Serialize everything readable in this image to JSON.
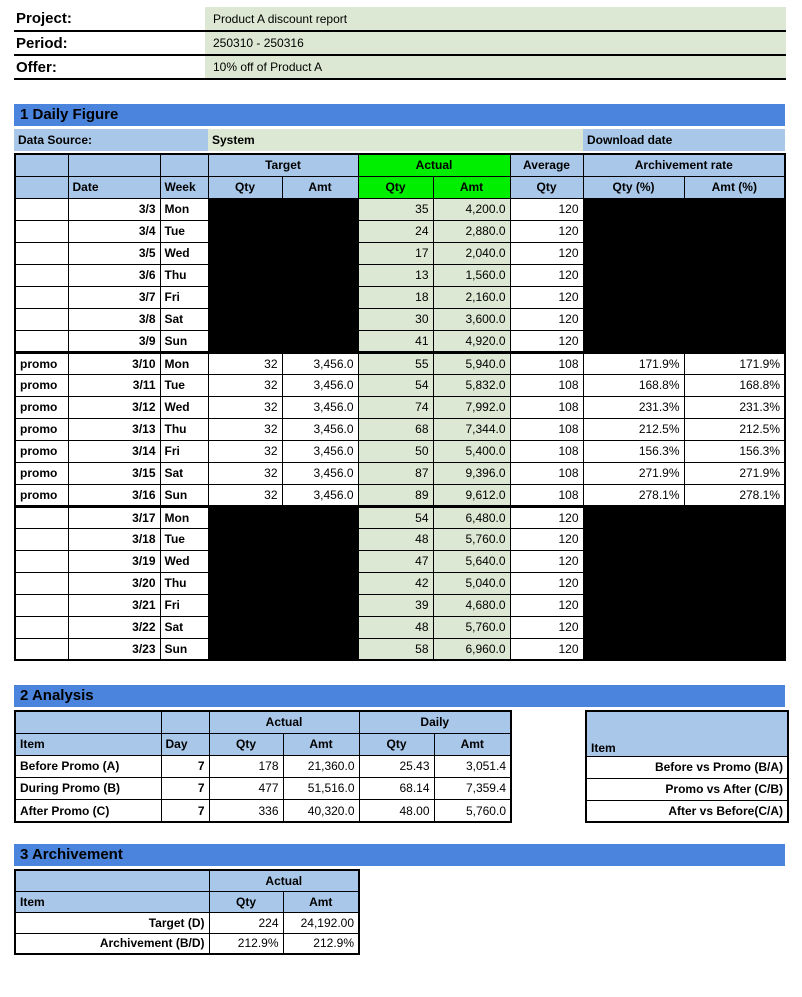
{
  "colors": {
    "section_bar_blue": "#4a84dc",
    "header_light_blue": "#a9c7e8",
    "pale_green": "#dce8d3",
    "bright_green": "#00ee00",
    "hidden_black": "#000000"
  },
  "meta": {
    "project_label": "Project:",
    "project_value": "Product A discount report",
    "period_label": "Period:",
    "period_value": "250310 - 250316",
    "offer_label": "Offer:",
    "offer_value": "10% off of Product A"
  },
  "section1": {
    "title": "1 Daily Figure",
    "data_source_label": "Data Source:",
    "data_source_value": "System",
    "download_label": "Download date",
    "header": {
      "date": "Date",
      "week": "Week",
      "target": "Target",
      "actual": "Actual",
      "average": "Average",
      "arch_rate": "Archivement rate",
      "qty": "Qty",
      "amt": "Amt",
      "qty_pct": "Qty (%)",
      "amt_pct": "Amt (%)"
    },
    "rows": [
      {
        "group": "before",
        "promo": "",
        "date": "3/3",
        "week": "Mon",
        "tqty": "",
        "tamt": "",
        "aqty": "35",
        "aamt": "4,200.0",
        "avg": "120",
        "qpct": "",
        "apct": ""
      },
      {
        "group": "before",
        "promo": "",
        "date": "3/4",
        "week": "Tue",
        "tqty": "",
        "tamt": "",
        "aqty": "24",
        "aamt": "2,880.0",
        "avg": "120",
        "qpct": "",
        "apct": ""
      },
      {
        "group": "before",
        "promo": "",
        "date": "3/5",
        "week": "Wed",
        "tqty": "",
        "tamt": "",
        "aqty": "17",
        "aamt": "2,040.0",
        "avg": "120",
        "qpct": "",
        "apct": ""
      },
      {
        "group": "before",
        "promo": "",
        "date": "3/6",
        "week": "Thu",
        "tqty": "",
        "tamt": "",
        "aqty": "13",
        "aamt": "1,560.0",
        "avg": "120",
        "qpct": "",
        "apct": ""
      },
      {
        "group": "before",
        "promo": "",
        "date": "3/7",
        "week": "Fri",
        "tqty": "",
        "tamt": "",
        "aqty": "18",
        "aamt": "2,160.0",
        "avg": "120",
        "qpct": "",
        "apct": ""
      },
      {
        "group": "before",
        "promo": "",
        "date": "3/8",
        "week": "Sat",
        "tqty": "",
        "tamt": "",
        "aqty": "30",
        "aamt": "3,600.0",
        "avg": "120",
        "qpct": "",
        "apct": ""
      },
      {
        "group": "before",
        "promo": "",
        "date": "3/9",
        "week": "Sun",
        "tqty": "",
        "tamt": "",
        "aqty": "41",
        "aamt": "4,920.0",
        "avg": "120",
        "qpct": "",
        "apct": ""
      },
      {
        "group": "promo",
        "promo": "promo",
        "date": "3/10",
        "week": "Mon",
        "tqty": "32",
        "tamt": "3,456.0",
        "aqty": "55",
        "aamt": "5,940.0",
        "avg": "108",
        "qpct": "171.9%",
        "apct": "171.9%"
      },
      {
        "group": "promo",
        "promo": "promo",
        "date": "3/11",
        "week": "Tue",
        "tqty": "32",
        "tamt": "3,456.0",
        "aqty": "54",
        "aamt": "5,832.0",
        "avg": "108",
        "qpct": "168.8%",
        "apct": "168.8%"
      },
      {
        "group": "promo",
        "promo": "promo",
        "date": "3/12",
        "week": "Wed",
        "tqty": "32",
        "tamt": "3,456.0",
        "aqty": "74",
        "aamt": "7,992.0",
        "avg": "108",
        "qpct": "231.3%",
        "apct": "231.3%"
      },
      {
        "group": "promo",
        "promo": "promo",
        "date": "3/13",
        "week": "Thu",
        "tqty": "32",
        "tamt": "3,456.0",
        "aqty": "68",
        "aamt": "7,344.0",
        "avg": "108",
        "qpct": "212.5%",
        "apct": "212.5%"
      },
      {
        "group": "promo",
        "promo": "promo",
        "date": "3/14",
        "week": "Fri",
        "tqty": "32",
        "tamt": "3,456.0",
        "aqty": "50",
        "aamt": "5,400.0",
        "avg": "108",
        "qpct": "156.3%",
        "apct": "156.3%"
      },
      {
        "group": "promo",
        "promo": "promo",
        "date": "3/15",
        "week": "Sat",
        "tqty": "32",
        "tamt": "3,456.0",
        "aqty": "87",
        "aamt": "9,396.0",
        "avg": "108",
        "qpct": "271.9%",
        "apct": "271.9%"
      },
      {
        "group": "promo",
        "promo": "promo",
        "date": "3/16",
        "week": "Sun",
        "tqty": "32",
        "tamt": "3,456.0",
        "aqty": "89",
        "aamt": "9,612.0",
        "avg": "108",
        "qpct": "278.1%",
        "apct": "278.1%"
      },
      {
        "group": "after",
        "promo": "",
        "date": "3/17",
        "week": "Mon",
        "tqty": "",
        "tamt": "",
        "aqty": "54",
        "aamt": "6,480.0",
        "avg": "120",
        "qpct": "",
        "apct": ""
      },
      {
        "group": "after",
        "promo": "",
        "date": "3/18",
        "week": "Tue",
        "tqty": "",
        "tamt": "",
        "aqty": "48",
        "aamt": "5,760.0",
        "avg": "120",
        "qpct": "",
        "apct": ""
      },
      {
        "group": "after",
        "promo": "",
        "date": "3/19",
        "week": "Wed",
        "tqty": "",
        "tamt": "",
        "aqty": "47",
        "aamt": "5,640.0",
        "avg": "120",
        "qpct": "",
        "apct": ""
      },
      {
        "group": "after",
        "promo": "",
        "date": "3/20",
        "week": "Thu",
        "tqty": "",
        "tamt": "",
        "aqty": "42",
        "aamt": "5,040.0",
        "avg": "120",
        "qpct": "",
        "apct": ""
      },
      {
        "group": "after",
        "promo": "",
        "date": "3/21",
        "week": "Fri",
        "tqty": "",
        "tamt": "",
        "aqty": "39",
        "aamt": "4,680.0",
        "avg": "120",
        "qpct": "",
        "apct": ""
      },
      {
        "group": "after",
        "promo": "",
        "date": "3/22",
        "week": "Sat",
        "tqty": "",
        "tamt": "",
        "aqty": "48",
        "aamt": "5,760.0",
        "avg": "120",
        "qpct": "",
        "apct": ""
      },
      {
        "group": "after",
        "promo": "",
        "date": "3/23",
        "week": "Sun",
        "tqty": "",
        "tamt": "",
        "aqty": "58",
        "aamt": "6,960.0",
        "avg": "120",
        "qpct": "",
        "apct": ""
      }
    ]
  },
  "section2": {
    "title": "2 Analysis",
    "left": {
      "header": {
        "item": "Item",
        "day": "Day",
        "actual": "Actual",
        "daily": "Daily",
        "qty": "Qty",
        "amt": "Amt"
      },
      "rows": [
        {
          "item": "Before Promo (A)",
          "day": "7",
          "aqty": "178",
          "aamt": "21,360.0",
          "dqty": "25.43",
          "damt": "3,051.4"
        },
        {
          "item": "During Promo (B)",
          "day": "7",
          "aqty": "477",
          "aamt": "51,516.0",
          "dqty": "68.14",
          "damt": "7,359.4"
        },
        {
          "item": "After Promo (C)",
          "day": "7",
          "aqty": "336",
          "aamt": "40,320.0",
          "dqty": "48.00",
          "damt": "5,760.0"
        }
      ]
    },
    "right": {
      "header_item": "Item",
      "rows": [
        {
          "item": "Before vs Promo (B/A)"
        },
        {
          "item": "Promo vs After (C/B)"
        },
        {
          "item": "After vs Before(C/A)"
        }
      ]
    }
  },
  "section3": {
    "title": "3 Archivement",
    "header": {
      "item": "Item",
      "actual": "Actual",
      "qty": "Qty",
      "amt": "Amt"
    },
    "rows": [
      {
        "item": "Target (D)",
        "qty": "224",
        "amt": "24,192.00"
      },
      {
        "item": "Archivement  (B/D)",
        "qty": "212.9%",
        "amt": "212.9%"
      }
    ]
  }
}
